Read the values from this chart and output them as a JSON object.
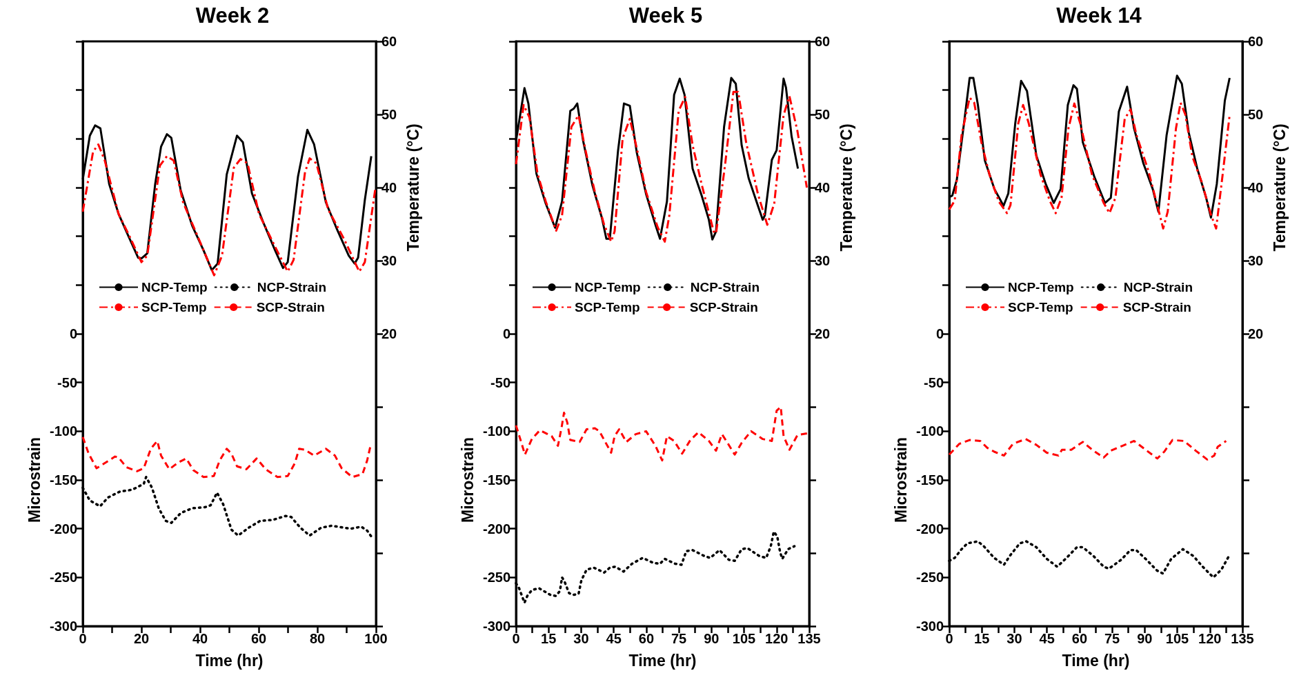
{
  "chart_data": [
    {
      "type": "line",
      "title": "Week 2",
      "xlabel": "Time (hr)",
      "ylabel": "Microstrain",
      "y2label": "Temperature (°C)",
      "legend": "center",
      "marker": "none",
      "grid": false,
      "xlim": [
        0,
        100
      ],
      "xticks": [
        0,
        {
          "value": 10,
          "label": null
        },
        20,
        {
          "value": 30,
          "label": null
        },
        40,
        {
          "value": 50,
          "label": null
        },
        60,
        {
          "value": 70,
          "label": null
        },
        80,
        {
          "value": 90,
          "label": null
        },
        100
      ],
      "ylim": [
        -300,
        300
      ],
      "yticks": [
        -300,
        -250,
        -200,
        -150,
        -100,
        -50,
        0,
        {
          "value": 50,
          "label": null
        },
        {
          "value": 100,
          "label": null
        },
        {
          "value": 150,
          "label": null
        },
        {
          "value": 200,
          "label": null
        },
        {
          "value": 250,
          "label": null
        },
        {
          "value": 300,
          "label": null
        }
      ],
      "y2lim": [
        -20,
        60
      ],
      "y2ticks": [
        {
          "value": -20,
          "label": null
        },
        {
          "value": -10,
          "label": null
        },
        {
          "value": 0,
          "label": null
        },
        {
          "value": 10,
          "label": null
        },
        20,
        30,
        40,
        50,
        60
      ],
      "series": [
        {
          "name": "NCP-Temp",
          "color": "#000000",
          "axis": "y2",
          "line_style": "solid",
          "x": [
            0,
            2.4,
            4.2,
            6,
            9,
            12.2,
            15.3,
            18.9,
            20,
            22,
            24.7,
            26.7,
            28.7,
            30.2,
            33.4,
            37.3,
            41.2,
            44,
            46,
            49.1,
            52.6,
            54.6,
            57.7,
            61.7,
            65.6,
            68.3,
            69.9,
            73.4,
            76.6,
            78.9,
            82.9,
            86.8,
            90.7,
            92.7,
            93.9,
            96.2,
            98.4
          ],
          "values": [
            41.1,
            47.1,
            48.5,
            48.1,
            40.5,
            36.4,
            33.6,
            30.4,
            30.3,
            31.0,
            40.5,
            45.6,
            47.3,
            46.8,
            39.6,
            34.8,
            31.4,
            28.7,
            29.6,
            41.8,
            47.1,
            46.2,
            39.2,
            35.1,
            31.4,
            29.0,
            29.8,
            41.5,
            47.9,
            45.9,
            38.0,
            34.2,
            30.7,
            29.6,
            30.4,
            38.3,
            44.3
          ]
        },
        {
          "name": "NCP-Strain",
          "color": "#000000",
          "axis": "y",
          "line_style": "dotted",
          "x": [
            0,
            2.4,
            5.9,
            8.6,
            12.6,
            16.9,
            20.8,
            21.6,
            23.6,
            25.9,
            28.3,
            30.2,
            33.4,
            37.3,
            41.6,
            43.6,
            45.8,
            47.9,
            50.7,
            53,
            56.6,
            60.5,
            64.8,
            69.1,
            71.1,
            74.2,
            77.4,
            81.3,
            84.8,
            89.2,
            91.5,
            95,
            97,
            98.4
          ],
          "values": [
            -158,
            -171,
            -177,
            -168,
            -162,
            -160,
            -154,
            -147,
            -158,
            -179,
            -192,
            -194,
            -184,
            -179,
            -178,
            -176,
            -163,
            -175,
            -201,
            -207,
            -199,
            -192,
            -191,
            -187,
            -188,
            -199,
            -207,
            -199,
            -197,
            -199,
            -200,
            -198,
            -202,
            -208
          ]
        },
        {
          "name": "SCP-Temp",
          "color": "#ff0000",
          "axis": "y2",
          "line_style": "dashdot",
          "x": [
            0,
            3.5,
            5.3,
            7.5,
            12.2,
            16.1,
            20,
            22,
            26.3,
            28.7,
            31,
            34.2,
            38.9,
            44.8,
            47.5,
            51.5,
            53.8,
            56.2,
            60.1,
            65.6,
            69.9,
            71.9,
            75.8,
            77.4,
            79.7,
            83.7,
            89.2,
            94.3,
            96.2,
            99.8
          ],
          "values": [
            36.7,
            44.9,
            45.9,
            43.7,
            36.4,
            33.2,
            29.8,
            30.7,
            43.0,
            44.3,
            43.7,
            38.0,
            33.6,
            28.0,
            30.7,
            42.7,
            43.9,
            43.3,
            36.4,
            31.9,
            28.5,
            30.1,
            42.1,
            44.0,
            43.3,
            37.0,
            32.9,
            28.5,
            29.8,
            39.9
          ]
        },
        {
          "name": "SCP-Strain",
          "color": "#ff0000",
          "axis": "y",
          "line_style": "dashed",
          "x": [
            0,
            2,
            4.7,
            7.9,
            11,
            12.2,
            14.9,
            18.5,
            20.8,
            23.2,
            25.4,
            26.7,
            29.5,
            32.6,
            35.3,
            37.7,
            41.2,
            44.7,
            46.7,
            49.1,
            50.7,
            52.6,
            55.8,
            59.3,
            62.4,
            66.4,
            69.9,
            72.3,
            73.8,
            75.8,
            78.9,
            82.9,
            86,
            88.3,
            91.9,
            95.4,
            97,
            98.2
          ],
          "values": [
            -106,
            -123,
            -138,
            -132,
            -126,
            -127,
            -137,
            -141,
            -138,
            -118,
            -110,
            -125,
            -139,
            -132,
            -128,
            -140,
            -147,
            -146,
            -130,
            -118,
            -123,
            -136,
            -139,
            -128,
            -139,
            -147,
            -146,
            -133,
            -118,
            -119,
            -125,
            -118,
            -125,
            -138,
            -147,
            -144,
            -130,
            -114
          ]
        }
      ]
    },
    {
      "type": "line",
      "title": "Week 5",
      "xlabel": "Time (hr)",
      "ylabel": "Microstrain",
      "y2label": "Temperature (°C)",
      "legend": "center",
      "marker": "none",
      "grid": false,
      "xlim": [
        0,
        135
      ],
      "xticks": [
        0,
        {
          "value": 7.5,
          "label": null
        },
        15,
        {
          "value": 22.5,
          "label": null
        },
        30,
        {
          "value": 37.5,
          "label": null
        },
        45,
        {
          "value": 52.5,
          "label": null
        },
        60,
        {
          "value": 67.5,
          "label": null
        },
        75,
        {
          "value": 82.5,
          "label": null
        },
        90,
        {
          "value": 97.5,
          "label": null
        },
        105,
        {
          "value": 112.5,
          "label": null
        },
        120,
        {
          "value": 127.5,
          "label": null
        },
        135
      ],
      "ylim": [
        -300,
        300
      ],
      "yticks": [
        -300,
        -250,
        -200,
        -150,
        -100,
        -50,
        0,
        {
          "value": 50,
          "label": null
        },
        {
          "value": 100,
          "label": null
        },
        {
          "value": 150,
          "label": null
        },
        {
          "value": 200,
          "label": null
        },
        {
          "value": 250,
          "label": null
        },
        {
          "value": 300,
          "label": null
        }
      ],
      "y2lim": [
        -20,
        60
      ],
      "y2ticks": [
        {
          "value": -20,
          "label": null
        },
        {
          "value": -10,
          "label": null
        },
        {
          "value": 0,
          "label": null
        },
        {
          "value": 10,
          "label": null
        },
        20,
        30,
        40,
        50,
        60
      ],
      "series": [
        {
          "name": "NCP-Temp",
          "color": "#000000",
          "axis": "y2",
          "line_style": "solid",
          "x": [
            0,
            1.9,
            3.9,
            5.7,
            9.4,
            13.7,
            18,
            21.2,
            25,
            26.6,
            28.2,
            30.9,
            35.2,
            39.5,
            41.6,
            43.2,
            47,
            49.7,
            52.4,
            55.6,
            59.9,
            64.2,
            66.3,
            69.5,
            72.8,
            75.4,
            77.6,
            81.3,
            85.6,
            88.8,
            90.4,
            92.1,
            95.8,
            99.1,
            101.2,
            103.9,
            107.1,
            111.4,
            113.6,
            114.6,
            117.8,
            120,
            123.2,
            124.3,
            126.9,
            129.8
          ],
          "values": [
            46.4,
            49.9,
            53.6,
            51.5,
            41.9,
            37.8,
            34.5,
            38.1,
            50.5,
            50.8,
            51.5,
            46.4,
            40.3,
            35.9,
            33.0,
            33.0,
            45.1,
            51.5,
            51.2,
            44.8,
            39.1,
            34.9,
            33.0,
            38.1,
            52.7,
            54.9,
            52.7,
            42.6,
            38.8,
            35.6,
            32.9,
            34.0,
            48.3,
            55.0,
            54.2,
            45.8,
            41.3,
            37.5,
            35.6,
            36.2,
            43.8,
            45.1,
            54.9,
            53.7,
            47.0,
            42.6
          ]
        },
        {
          "name": "NCP-Strain",
          "color": "#000000",
          "axis": "y",
          "line_style": "dotted",
          "x": [
            0,
            1.4,
            3.9,
            5.2,
            7.3,
            10.5,
            15.9,
            18.3,
            20.2,
            21.2,
            22.3,
            24.4,
            26,
            28.8,
            30.1,
            32.5,
            35.8,
            40.6,
            43.2,
            45.7,
            49.5,
            53.4,
            58.3,
            63.1,
            66.3,
            68.5,
            73.3,
            76.2,
            78.4,
            81.3,
            86.7,
            89.4,
            93.7,
            98,
            100.7,
            103.9,
            106.6,
            112,
            115.2,
            117.3,
            118.7,
            120.3,
            121.6,
            122.6,
            125.3,
            128.2
          ],
          "values": [
            -256,
            -261,
            -276,
            -269,
            -263,
            -261,
            -268,
            -269,
            -264,
            -250,
            -254,
            -266,
            -268,
            -267,
            -253,
            -242,
            -240,
            -245,
            -240,
            -239,
            -244,
            -236,
            -230,
            -235,
            -236,
            -231,
            -236,
            -237,
            -223,
            -222,
            -228,
            -230,
            -222,
            -232,
            -233,
            -221,
            -220,
            -228,
            -230,
            -218,
            -203,
            -208,
            -224,
            -231,
            -221,
            -218
          ]
        },
        {
          "name": "SCP-Temp",
          "color": "#ff0000",
          "axis": "y2",
          "line_style": "dashdot",
          "x": [
            0,
            3.5,
            6.2,
            9.9,
            13.7,
            18.5,
            21.2,
            25.5,
            28.8,
            32,
            36.3,
            40.6,
            43.8,
            45.4,
            49.1,
            52.4,
            55.6,
            59.9,
            65.2,
            68.5,
            70.6,
            74.9,
            77.9,
            81.3,
            85.6,
            91,
            92.1,
            96.3,
            100.1,
            102.3,
            106,
            111.4,
            115.7,
            118.9,
            123.2,
            125.9,
            129.6,
            133.9
          ],
          "values": [
            43.2,
            51.3,
            49.6,
            41.9,
            38.1,
            34.1,
            36.2,
            48.3,
            49.9,
            45.1,
            39.4,
            34.9,
            32.6,
            34.0,
            46.7,
            49.4,
            45.4,
            39.4,
            34.6,
            32.6,
            36.2,
            50.5,
            52.4,
            45.8,
            40.3,
            34.0,
            33.7,
            43.2,
            53.1,
            53.1,
            46.1,
            39.1,
            34.9,
            37.8,
            49.9,
            52.5,
            47.7,
            40.0
          ]
        },
        {
          "name": "SCP-Strain",
          "color": "#ff0000",
          "axis": "y",
          "line_style": "dashed",
          "x": [
            0,
            2.5,
            4.1,
            7.3,
            11,
            16.4,
            19.3,
            21,
            22.1,
            23.6,
            25,
            29.3,
            32.5,
            36.3,
            38.4,
            43.8,
            45.4,
            47.5,
            50.8,
            55.1,
            59.9,
            64.2,
            67.3,
            69.5,
            72.8,
            76.5,
            80.3,
            84,
            88.8,
            92.1,
            94.8,
            97.4,
            100.7,
            103.9,
            108.2,
            113.6,
            117.8,
            120,
            121.9,
            123.2,
            125.9,
            129.6,
            134.4
          ],
          "values": [
            -94,
            -112,
            -124,
            -108,
            -99,
            -105,
            -115,
            -96,
            -81,
            -91,
            -109,
            -111,
            -98,
            -97,
            -100,
            -122,
            -105,
            -98,
            -111,
            -103,
            -100,
            -115,
            -130,
            -105,
            -110,
            -123,
            -109,
            -101,
            -110,
            -120,
            -103,
            -112,
            -124,
            -112,
            -100,
            -108,
            -110,
            -79,
            -75,
            -105,
            -119,
            -104,
            -102
          ]
        }
      ]
    },
    {
      "type": "line",
      "title": "Week 14",
      "xlabel": "Time (hr)",
      "ylabel": "Microstrain",
      "y2label": "Temperature (°C)",
      "legend": "center",
      "marker": "none",
      "grid": false,
      "xlim": [
        0,
        135
      ],
      "xticks": [
        0,
        {
          "value": 7.5,
          "label": null
        },
        15,
        {
          "value": 22.5,
          "label": null
        },
        30,
        {
          "value": 37.5,
          "label": null
        },
        45,
        {
          "value": 52.5,
          "label": null
        },
        60,
        {
          "value": 67.5,
          "label": null
        },
        75,
        {
          "value": 82.5,
          "label": null
        },
        90,
        {
          "value": 97.5,
          "label": null
        },
        105,
        {
          "value": 112.5,
          "label": null
        },
        120,
        {
          "value": 127.5,
          "label": null
        },
        135
      ],
      "ylim": [
        -300,
        300
      ],
      "yticks": [
        -300,
        -250,
        -200,
        -150,
        -100,
        -50,
        0,
        {
          "value": 50,
          "label": null
        },
        {
          "value": 100,
          "label": null
        },
        {
          "value": 150,
          "label": null
        },
        {
          "value": 200,
          "label": null
        },
        {
          "value": 250,
          "label": null
        },
        {
          "value": 300,
          "label": null
        }
      ],
      "y2lim": [
        -20,
        60
      ],
      "y2ticks": [
        {
          "value": -20,
          "label": null
        },
        {
          "value": -10,
          "label": null
        },
        {
          "value": 0,
          "label": null
        },
        {
          "value": 10,
          "label": null
        },
        20,
        30,
        40,
        50,
        60
      ],
      "series": [
        {
          "name": "NCP-Temp",
          "color": "#000000",
          "axis": "y2",
          "line_style": "solid",
          "x": [
            0,
            1.4,
            3.5,
            6.8,
            9.4,
            11.1,
            13.2,
            16.4,
            20.8,
            25,
            27.2,
            30.4,
            33.1,
            35.8,
            40.1,
            44.4,
            48.1,
            51.3,
            54.6,
            57.2,
            58.8,
            61.5,
            66.9,
            71.7,
            74.4,
            78.1,
            81.9,
            85.1,
            89.4,
            93.7,
            96.3,
            100.1,
            104.9,
            107.1,
            110.3,
            114.1,
            118.3,
            120.5,
            123.2,
            126.9,
            129.1
          ],
          "values": [
            38.7,
            38.9,
            41.1,
            48.8,
            55.0,
            55.0,
            51.3,
            43.7,
            39.8,
            37.5,
            39.2,
            48.8,
            54.6,
            53.2,
            44.4,
            40.5,
            37.9,
            39.8,
            51.3,
            54.0,
            53.5,
            46.2,
            41.4,
            37.9,
            38.6,
            50.4,
            53.8,
            48.1,
            43.3,
            39.8,
            36.7,
            47.2,
            55.3,
            54.2,
            47.5,
            42.7,
            38.6,
            35.9,
            40.5,
            51.9,
            55.0
          ]
        },
        {
          "name": "NCP-Strain",
          "color": "#000000",
          "axis": "y",
          "line_style": "dotted",
          "x": [
            0,
            2.5,
            5.7,
            8.4,
            13.2,
            15.9,
            20.7,
            25.2,
            28.2,
            32.5,
            35.5,
            40.1,
            44.9,
            49.7,
            54,
            58.8,
            61.5,
            66.4,
            71.1,
            73.5,
            79.1,
            83.4,
            86.1,
            90.9,
            95.7,
            98.4,
            102.2,
            107.6,
            112.4,
            116.7,
            121.6,
            125.3,
            128.8
          ],
          "values": [
            -233,
            -230,
            -221,
            -215,
            -213,
            -218,
            -230,
            -237,
            -227,
            -215,
            -213,
            -219,
            -231,
            -239,
            -230,
            -219,
            -219,
            -228,
            -239,
            -241,
            -232,
            -222,
            -222,
            -232,
            -243,
            -246,
            -231,
            -221,
            -228,
            -239,
            -250,
            -242,
            -228
          ]
        },
        {
          "name": "SCP-Temp",
          "color": "#ff0000",
          "axis": "y2",
          "line_style": "dashdot",
          "x": [
            0,
            2.5,
            5.7,
            9.4,
            11.5,
            14.8,
            18.5,
            22.8,
            26.6,
            28.2,
            31.8,
            34,
            36.6,
            42,
            46.3,
            49,
            51.7,
            54.9,
            57.6,
            60.3,
            65.7,
            71.1,
            73.8,
            76.5,
            80.8,
            83.5,
            86.2,
            91.6,
            96.3,
            98.5,
            100.6,
            104.4,
            106.5,
            108.7,
            111.9,
            116.2,
            120.5,
            122.9,
            125.9,
            129.1
          ],
          "values": [
            37.0,
            38.2,
            47.2,
            52.3,
            51.6,
            46.2,
            41.8,
            38.1,
            36.5,
            37.6,
            48.8,
            51.3,
            48.8,
            41.8,
            38.2,
            36.5,
            38.6,
            48.1,
            51.5,
            48.8,
            41.8,
            37.9,
            36.5,
            38.6,
            49.4,
            50.7,
            47.2,
            42.4,
            37.0,
            34.4,
            36.7,
            48.1,
            51.6,
            50.0,
            44.3,
            40.8,
            36.3,
            34.4,
            41.8,
            49.9
          ]
        },
        {
          "name": "SCP-Strain",
          "color": "#ff0000",
          "axis": "y",
          "line_style": "dashed",
          "x": [
            0,
            4.6,
            9.4,
            14.3,
            17.5,
            20.7,
            25.2,
            29.3,
            35.2,
            40.1,
            44.9,
            50.3,
            51.9,
            56.2,
            61.5,
            65.8,
            71.1,
            74.4,
            79.7,
            85.1,
            90.4,
            95.8,
            99,
            102.8,
            108.1,
            113.5,
            118.8,
            122,
            123.6,
            127.5
          ],
          "values": [
            -124,
            -113,
            -109,
            -110,
            -117,
            -121,
            -125,
            -113,
            -108,
            -114,
            -122,
            -125,
            -119,
            -119,
            -111,
            -119,
            -127,
            -120,
            -115,
            -110,
            -119,
            -128,
            -121,
            -109,
            -110,
            -120,
            -129,
            -125,
            -116,
            -110
          ]
        }
      ]
    }
  ]
}
